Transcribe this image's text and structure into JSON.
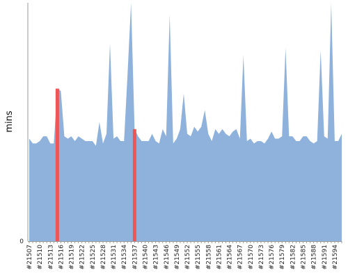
{
  "chart_data": {
    "type": "area",
    "title": "",
    "xlabel": "",
    "ylabel": "mins",
    "ylim": [
      0,
      100
    ],
    "y_tick_labels": [
      "0"
    ],
    "grid": false,
    "legend": "none",
    "colors": {
      "area": "#8fb2dc",
      "highlight": "#f05555",
      "axis": "#999999"
    },
    "series": [
      {
        "values": [
          43,
          41,
          41,
          42,
          44,
          44,
          41,
          41,
          64,
          63,
          44,
          43,
          44,
          42,
          44,
          43,
          42,
          42,
          42,
          40,
          50,
          41,
          45,
          83,
          43,
          44,
          42,
          42,
          70,
          100,
          47,
          44,
          42,
          42,
          42,
          45,
          42,
          41,
          47,
          44,
          95,
          41,
          43,
          47,
          62,
          45,
          44,
          48,
          46,
          48,
          55,
          45,
          42,
          47,
          45,
          47,
          45,
          44,
          46,
          47,
          43,
          78,
          42,
          43,
          41,
          42,
          42,
          41,
          43,
          46,
          43,
          43,
          44,
          81,
          44,
          44,
          42,
          42,
          44,
          44,
          42,
          41,
          42,
          80,
          44,
          43,
          100,
          42,
          42,
          45
        ]
      }
    ],
    "highlight_indices": [
      8,
      30
    ],
    "x_labels": [
      "#21507",
      "#21510",
      "#21513",
      "#21516",
      "#21519",
      "#21522",
      "#21525",
      "#21528",
      "#21531",
      "#21534",
      "#21537",
      "#21540",
      "#21543",
      "#21546",
      "#21549",
      "#21552",
      "#21555",
      "#21558",
      "#21561",
      "#21564",
      "#21567",
      "#21570",
      "#21573",
      "#21576",
      "#21579",
      "#21582",
      "#21585",
      "#21588",
      "#21591",
      "#21594"
    ]
  }
}
